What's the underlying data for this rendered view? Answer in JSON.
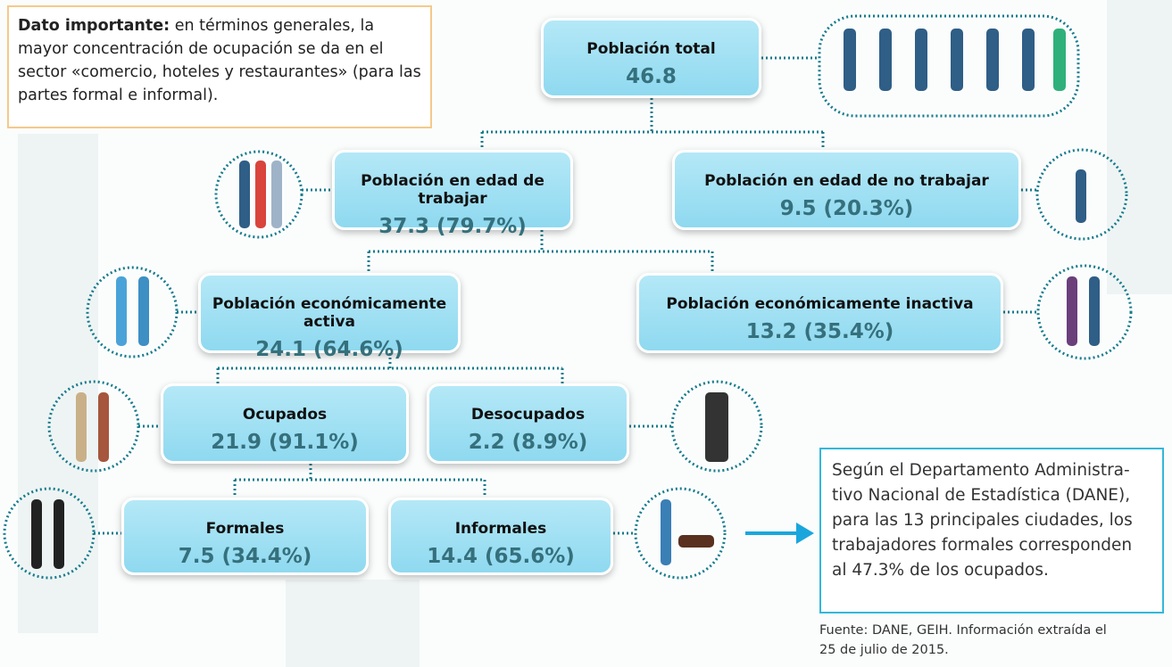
{
  "note": {
    "bold": "Dato importante:",
    "text": "en términos generales, la mayor concentración de ocupación se da en el sector «comercio, hoteles y restaurantes» (para las partes formal e informal)."
  },
  "nodes": [
    {
      "label": "Población total",
      "value": "46.8"
    },
    {
      "label": "Población en edad de trabajar",
      "value": "37.3 (79.7%)"
    },
    {
      "label": "Población en edad de no trabajar",
      "value": "9.5 (20.3%)"
    },
    {
      "label": "Población económicamente activa",
      "value": "24.1 (64.6%)"
    },
    {
      "label": "Población económicamente inactiva",
      "value": "13.2 (35.4%)"
    },
    {
      "label": "Ocupados",
      "value": "21.9 (91.1%)"
    },
    {
      "label": "Desocupados",
      "value": "2.2 (8.9%)"
    },
    {
      "label": "Formales",
      "value": "7.5 (34.4%)"
    },
    {
      "label": "Informales",
      "value": "14.4 (65.6%)"
    }
  ],
  "callout": {
    "lines": [
      "Según el Departamento Administra-",
      "tivo Nacional de Estadística (DANE),",
      "para las 13 principales ciudades, los",
      "trabajadores formales corresponden",
      "al 47.3% de los ocupados."
    ]
  },
  "source": {
    "lines": [
      "Fuente: DANE, GEIH. Información extraída el",
      "25 de julio de 2015."
    ]
  }
}
